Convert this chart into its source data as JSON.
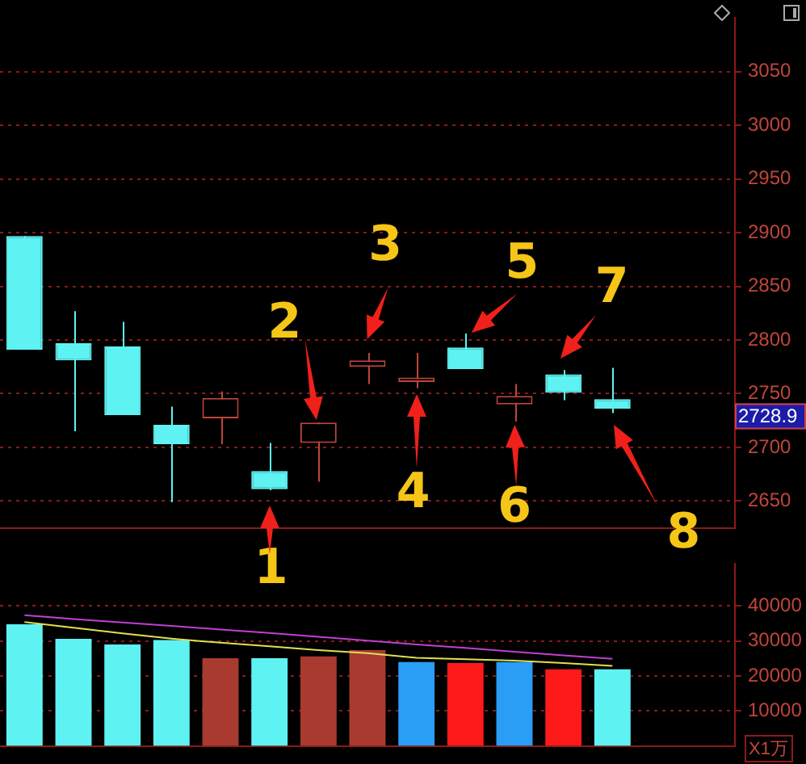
{
  "chart_data": [
    {
      "type": "candlestick",
      "categories": [
        null,
        null,
        null,
        null,
        null,
        null,
        null,
        null,
        null,
        null,
        null,
        null,
        null,
        null,
        null
      ],
      "ohlc": [
        [
          2897,
          2897,
          2791,
          2791
        ],
        [
          2797,
          2827,
          2715,
          2781
        ],
        [
          2794,
          2817,
          2730,
          2730
        ],
        [
          2721,
          2738,
          2649,
          2703
        ],
        [
          2727,
          2752,
          2703,
          2746
        ],
        [
          2678,
          2704,
          2660,
          2661
        ],
        [
          2704,
          2723,
          2668,
          2723
        ],
        [
          2775,
          2788,
          2759,
          2781
        ],
        [
          2761,
          2788,
          2755,
          2765
        ],
        [
          2793,
          2806,
          2773,
          2773
        ],
        [
          2740,
          2759,
          2724,
          2748
        ],
        [
          2768,
          2772,
          2744,
          2751
        ],
        [
          2745,
          2774,
          2732,
          2736
        ],
        null,
        null
      ],
      "colors": [
        "#5ff2f2",
        "#5ff2f2",
        "#5ff2f2",
        "#5ff2f2",
        "#c0453a",
        "#5ff2f2",
        "#c0453a",
        "#c0453a",
        "#c0453a",
        "#5ff2f2",
        "#c0453a",
        "#5ff2f2",
        "#5ff2f2",
        null,
        null
      ],
      "ylim": [
        2625,
        3100
      ],
      "yticks": [
        2650,
        2700,
        2750,
        2800,
        2850,
        2900,
        2950,
        3000,
        3050
      ],
      "grid": "y",
      "tick_labels": "y",
      "annotations": [
        "1",
        "2",
        "3",
        "4",
        "5",
        "6",
        "7",
        "8",
        {
          "text": "2728.9",
          "y": 2728.9
        }
      ]
    },
    {
      "type": "bar",
      "categories": [
        null,
        null,
        null,
        null,
        null,
        null,
        null,
        null,
        null,
        null,
        null,
        null,
        null,
        null,
        null
      ],
      "ylabel": "X1万",
      "series": [
        {
          "type": "bar",
          "values": [
            34800,
            30600,
            29000,
            30300,
            25100,
            25100,
            25600,
            27400,
            24000,
            23700,
            24000,
            21900,
            21900,
            null,
            null
          ],
          "colors": [
            "#5ff2f2",
            "#5ff2f2",
            "#5ff2f2",
            "#5ff2f2",
            "#a83a30",
            "#5ff2f2",
            "#a83a30",
            "#a83a30",
            "#2a9df4",
            "#ff1a1a",
            "#2a9df4",
            "#ff1a1a",
            "#5ff2f2",
            null,
            null
          ]
        },
        {
          "type": "line",
          "color": "#e0e050",
          "values": [
            35400,
            33800,
            32200,
            30700,
            29500,
            28500,
            27400,
            26500,
            25200,
            24800,
            24400,
            23700,
            22900,
            null,
            null
          ]
        },
        {
          "type": "line",
          "color": "#c040d0",
          "values": [
            37400,
            36300,
            35300,
            34300,
            33300,
            32300,
            31200,
            30100,
            29000,
            28000,
            26900,
            25900,
            24900,
            null,
            null
          ]
        }
      ],
      "ylim": [
        0,
        52000
      ],
      "yticks": [
        10000,
        20000,
        30000,
        40000
      ],
      "grid": "y",
      "tick_labels": "y"
    }
  ]
}
